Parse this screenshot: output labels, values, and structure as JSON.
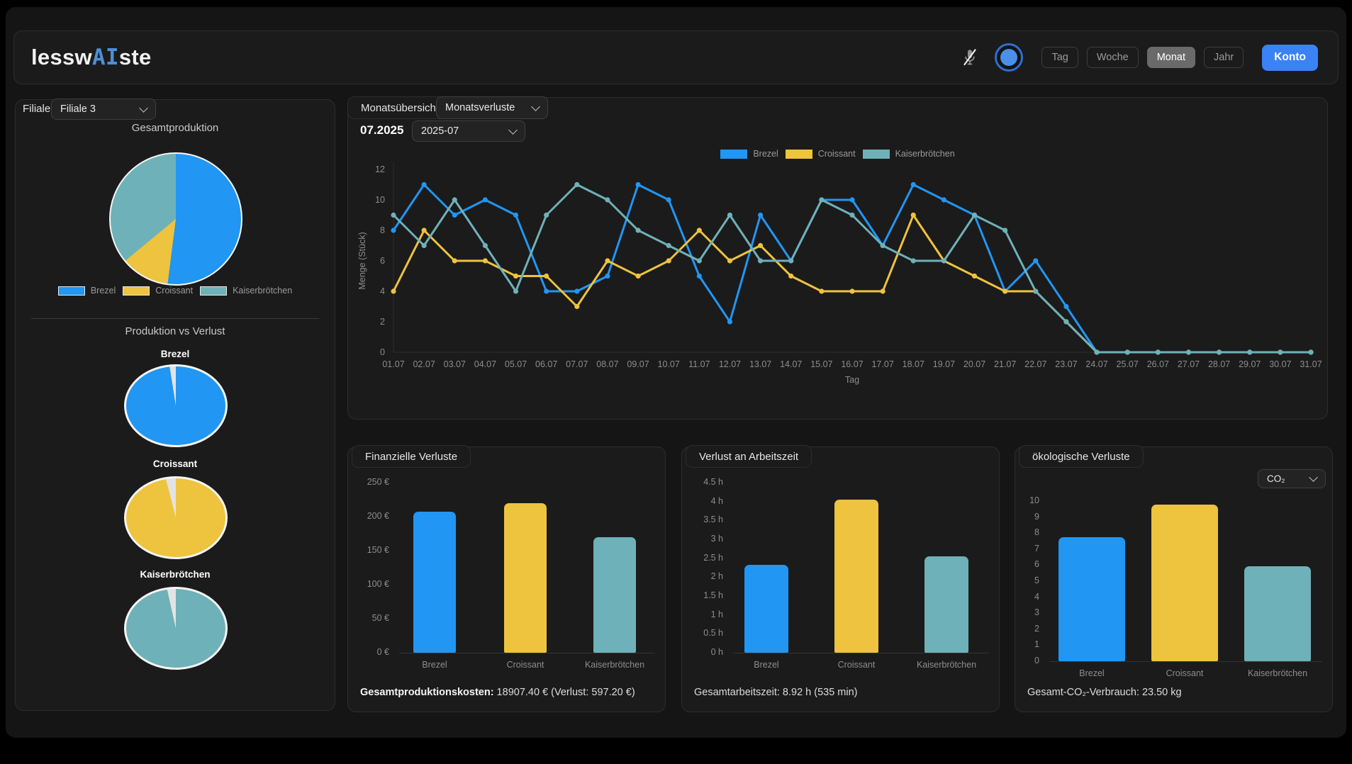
{
  "topbar": {
    "logo_prefix": "lessw",
    "logo_highlight": "AI",
    "logo_suffix": "ste",
    "period_buttons": [
      {
        "label": "Tag",
        "active": false
      },
      {
        "label": "Woche",
        "active": false
      },
      {
        "label": "Monat",
        "active": true
      },
      {
        "label": "Jahr",
        "active": false
      }
    ],
    "konto_label": "Konto",
    "icons": {
      "mic": "microphone-muted-icon",
      "indicator": "assistant-status-indicator"
    }
  },
  "colors": {
    "brezel": "#2196f3",
    "croissant": "#eec33e",
    "kaiserbroetchen": "#6fb1b8",
    "loss": "#e3e3e3",
    "accent": "#3b82f6"
  },
  "sidebar": {
    "filiale_label": "Filiale",
    "filiale_selected": "Filiale 3",
    "production_title": "Gesamtproduktion",
    "legend": [
      "Brezel",
      "Croissant",
      "Kaiserbrötchen"
    ],
    "vs_title": "Produktion vs Verlust",
    "vs_labels": [
      "Brezel",
      "Croissant",
      "Kaiserbrötchen"
    ]
  },
  "main_chart": {
    "panel_label": "Monatsübersicht",
    "view_selected": "Monatsverluste",
    "month_label": "07.2025",
    "month_selected": "2025-07"
  },
  "panels": {
    "financial": {
      "title": "Finanzielle Verluste",
      "footer_bold": "Gesamtproduktionskosten:",
      "footer_rest": " 18907.40 € (Verlust: 597.20 €)"
    },
    "worktime": {
      "title": "Verlust an Arbeitszeit",
      "footer": "Gesamtarbeitszeit: 8.92 h (535 min)"
    },
    "eco": {
      "title": "ökologische Verluste",
      "unit_selected": "CO₂",
      "footer": "Gesamt-CO₂-Verbrauch: 23.50 kg"
    }
  },
  "chart_data": [
    {
      "id": "monthly_losses",
      "type": "line",
      "title": "",
      "xlabel": "Tag",
      "ylabel": "Menge (Stück)",
      "ylim": [
        0,
        12
      ],
      "yticks": [
        0,
        2,
        4,
        6,
        8,
        10,
        12
      ],
      "legend_position": "top",
      "grid": false,
      "x": [
        "01.07",
        "02.07",
        "03.07",
        "04.07",
        "05.07",
        "06.07",
        "07.07",
        "08.07",
        "09.07",
        "10.07",
        "11.07",
        "12.07",
        "13.07",
        "14.07",
        "15.07",
        "16.07",
        "17.07",
        "18.07",
        "19.07",
        "20.07",
        "21.07",
        "22.07",
        "23.07",
        "24.07",
        "25.07",
        "26.07",
        "27.07",
        "28.07",
        "29.07",
        "30.07",
        "31.07"
      ],
      "series": [
        {
          "name": "Brezel",
          "color": "#2196f3",
          "values": [
            8,
            11,
            9,
            10,
            9,
            4,
            4,
            5,
            11,
            10,
            5,
            2,
            9,
            6,
            10,
            10,
            7,
            11,
            10,
            9,
            4,
            6,
            3,
            0,
            0,
            0,
            0,
            0,
            0,
            0,
            0
          ]
        },
        {
          "name": "Croissant",
          "color": "#eec33e",
          "values": [
            4,
            8,
            6,
            6,
            5,
            5,
            3,
            6,
            5,
            6,
            8,
            6,
            7,
            5,
            4,
            4,
            4,
            9,
            6,
            5,
            4,
            4,
            2,
            0,
            0,
            0,
            0,
            0,
            0,
            0,
            0
          ]
        },
        {
          "name": "Kaiserbrötchen",
          "color": "#6fb1b8",
          "values": [
            9,
            7,
            10,
            7,
            4,
            9,
            11,
            10,
            8,
            7,
            6,
            9,
            6,
            6,
            10,
            9,
            7,
            6,
            6,
            9,
            8,
            4,
            2,
            0,
            0,
            0,
            0,
            0,
            0,
            0,
            0
          ]
        }
      ]
    },
    {
      "id": "production_share",
      "type": "pie",
      "title": "Gesamtproduktion",
      "labels": [
        "Brezel",
        "Croissant",
        "Kaiserbrötchen"
      ],
      "values_pct": [
        52,
        12,
        36
      ],
      "colors": [
        "#2196f3",
        "#eec33e",
        "#6fb1b8"
      ]
    },
    {
      "id": "production_vs_loss",
      "type": "pie-group",
      "title": "Produktion vs Verlust",
      "pies": [
        {
          "label": "Brezel",
          "color": "#2196f3",
          "production_pct": 97.5,
          "loss_pct": 2.5
        },
        {
          "label": "Croissant",
          "color": "#eec33e",
          "production_pct": 96.0,
          "loss_pct": 4.0
        },
        {
          "label": "Kaiserbrötchen",
          "color": "#6fb1b8",
          "production_pct": 96.5,
          "loss_pct": 3.5
        }
      ]
    },
    {
      "id": "financial",
      "type": "bar",
      "title": "Finanzielle Verluste",
      "categories": [
        "Brezel",
        "Croissant",
        "Kaiserbrötchen"
      ],
      "values": [
        207,
        220,
        170
      ],
      "colors": [
        "#2196f3",
        "#eec33e",
        "#6fb1b8"
      ],
      "ylim": [
        0,
        250
      ],
      "yticks": [
        {
          "v": 0,
          "label": "0 €"
        },
        {
          "v": 50,
          "label": "50 €"
        },
        {
          "v": 100,
          "label": "100 €"
        },
        {
          "v": 150,
          "label": "150 €"
        },
        {
          "v": 200,
          "label": "200 €"
        },
        {
          "v": 250,
          "label": "250 €"
        }
      ]
    },
    {
      "id": "worktime",
      "type": "bar",
      "title": "Verlust an Arbeitszeit",
      "categories": [
        "Brezel",
        "Croissant",
        "Kaiserbrötchen"
      ],
      "values": [
        2.32,
        4.05,
        2.55
      ],
      "colors": [
        "#2196f3",
        "#eec33e",
        "#6fb1b8"
      ],
      "ylim": [
        0,
        4.5
      ],
      "yticks": [
        {
          "v": 0,
          "label": "0 h"
        },
        {
          "v": 0.5,
          "label": "0.5 h"
        },
        {
          "v": 1,
          "label": "1 h"
        },
        {
          "v": 1.5,
          "label": "1.5 h"
        },
        {
          "v": 2,
          "label": "2 h"
        },
        {
          "v": 2.5,
          "label": "2.5 h"
        },
        {
          "v": 3,
          "label": "3 h"
        },
        {
          "v": 3.5,
          "label": "3.5 h"
        },
        {
          "v": 4,
          "label": "4 h"
        },
        {
          "v": 4.5,
          "label": "4.5 h"
        }
      ]
    },
    {
      "id": "co2",
      "type": "bar",
      "title": "ökologische Verluste",
      "categories": [
        "Brezel",
        "Croissant",
        "Kaiserbrötchen"
      ],
      "values": [
        7.75,
        9.8,
        5.95
      ],
      "colors": [
        "#2196f3",
        "#eec33e",
        "#6fb1b8"
      ],
      "ylim": [
        0,
        10
      ],
      "yticks": [
        {
          "v": 0,
          "label": "0"
        },
        {
          "v": 1,
          "label": "1"
        },
        {
          "v": 2,
          "label": "2"
        },
        {
          "v": 3,
          "label": "3"
        },
        {
          "v": 4,
          "label": "4"
        },
        {
          "v": 5,
          "label": "5"
        },
        {
          "v": 6,
          "label": "6"
        },
        {
          "v": 7,
          "label": "7"
        },
        {
          "v": 8,
          "label": "8"
        },
        {
          "v": 9,
          "label": "9"
        },
        {
          "v": 10,
          "label": "10"
        }
      ]
    }
  ]
}
